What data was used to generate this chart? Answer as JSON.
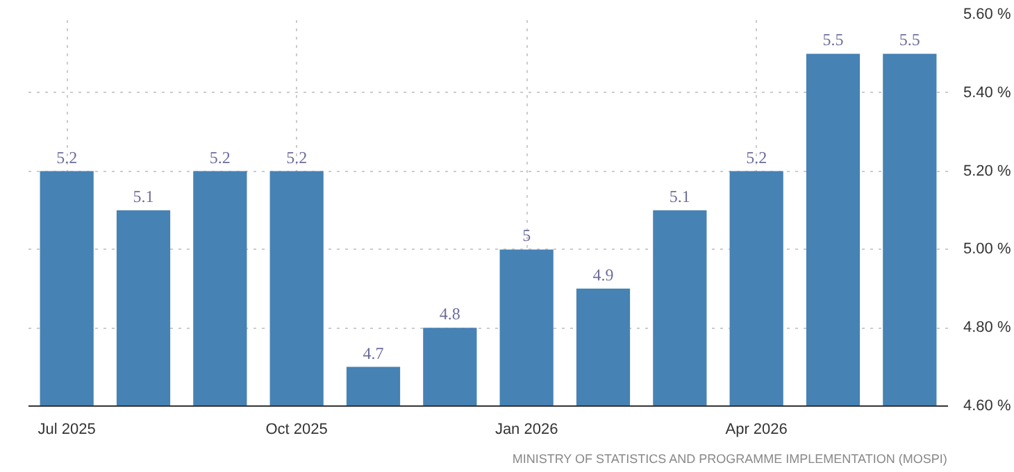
{
  "chart_data": {
    "type": "bar",
    "categories": [
      "Jul 2025",
      null,
      null,
      "Oct 2025",
      null,
      null,
      "Jan 2026",
      null,
      null,
      "Apr 2026",
      null,
      null
    ],
    "values": [
      5.2,
      5.1,
      5.2,
      5.2,
      4.7,
      4.8,
      5,
      4.9,
      5.1,
      5.2,
      5.5,
      5.5
    ],
    "color": "#4682b4",
    "data_labels": true,
    "ylim": [
      4.6,
      5.6
    ],
    "yticks": [
      {
        "value": 4.6,
        "label": "4.60 %"
      },
      {
        "value": 4.8,
        "label": "4.80 %"
      },
      {
        "value": 5.0,
        "label": "5.00 %"
      },
      {
        "value": 5.2,
        "label": "5.20 %"
      },
      {
        "value": 5.4,
        "label": "5.40 %"
      },
      {
        "value": 5.6,
        "label": "5.60 %"
      }
    ],
    "grid": true,
    "annotations": [
      "MINISTRY OF STATISTICS AND PROGRAMME IMPLEMENTATION (MOSPI)"
    ]
  }
}
